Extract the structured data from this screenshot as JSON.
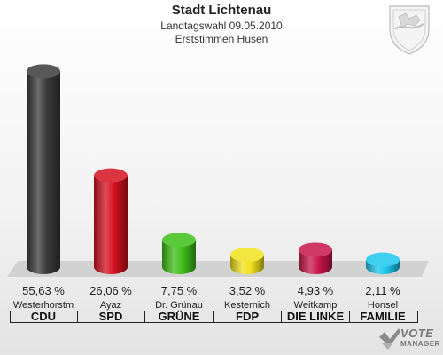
{
  "header": {
    "title": "Stadt Lichtenau",
    "subtitle1": "Landtagswahl 09.05.2010",
    "subtitle2": "Erststimmen Husen"
  },
  "chart_data": {
    "type": "bar",
    "title": "Stadt Lichtenau",
    "categories": [
      "CDU",
      "SPD",
      "GRÜNE",
      "FDP",
      "DIE LINKE",
      "FAMILIE"
    ],
    "candidates": [
      "Westerhorstm",
      "Ayaz",
      "Dr. Grünau",
      "Kesternich",
      "Weitkamp",
      "Honsel"
    ],
    "values": [
      55.63,
      26.06,
      7.75,
      3.52,
      4.93,
      2.11
    ],
    "value_labels": [
      "55,63 %",
      "26,06 %",
      "7,75 %",
      "3,52 %",
      "4,93 %",
      "2,11 %"
    ],
    "colors": [
      "#3a3a3a",
      "#d4111f",
      "#3fbf1a",
      "#f2e21f",
      "#c8164a",
      "#1cc6ee"
    ],
    "ylim": [
      0,
      60
    ],
    "grid": false,
    "legend": "none"
  },
  "logo": {
    "line1": "VOTE",
    "line2": "MANAGER"
  }
}
